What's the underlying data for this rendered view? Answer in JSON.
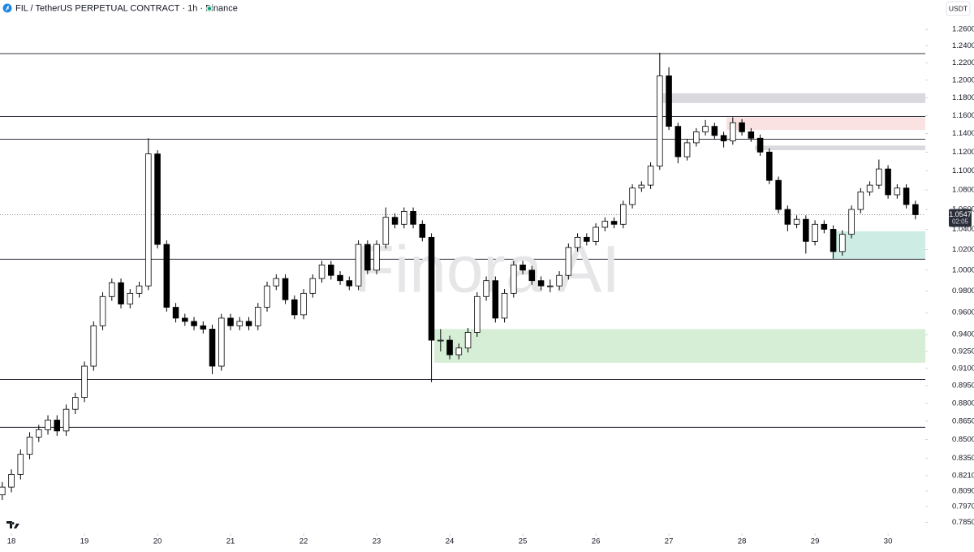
{
  "chart_data": {
    "type": "candlestick",
    "title": "FIL / TetherUS PERPETUAL CONTRACT · 1h · Binance",
    "currency": "USDT",
    "watermark": "Finora AI",
    "log_scale": true,
    "up_color": "#ffffff",
    "down_color": "#000000",
    "x": [
      17.875,
      18,
      18.125,
      18.25,
      18.375,
      18.5,
      18.625,
      18.75,
      18.875,
      19,
      19.125,
      19.25,
      19.375,
      19.5,
      19.625,
      19.75,
      19.875,
      20,
      20.125,
      20.25,
      20.375,
      20.5,
      20.625,
      20.75,
      20.875,
      21,
      21.125,
      21.25,
      21.375,
      21.5,
      21.625,
      21.75,
      21.875,
      22,
      22.125,
      22.25,
      22.375,
      22.5,
      22.625,
      22.75,
      22.875,
      23,
      23.125,
      23.25,
      23.375,
      23.5,
      23.625,
      23.75,
      23.875,
      24,
      24.125,
      24.25,
      24.375,
      24.5,
      24.625,
      24.75,
      24.875,
      25,
      25.125,
      25.25,
      25.375,
      25.5,
      25.625,
      25.75,
      25.875,
      26,
      26.125,
      26.25,
      26.375,
      26.5,
      26.625,
      26.75,
      26.875,
      27,
      27.125,
      27.25,
      27.375,
      27.5,
      27.625,
      27.75,
      27.875,
      28,
      28.125,
      28.25,
      28.375,
      28.5,
      28.625,
      28.75,
      28.875,
      29,
      29.125,
      29.25,
      29.375,
      29.5,
      29.625,
      29.75,
      29.875,
      30,
      30.125,
      30.25,
      30.375
    ],
    "open": [
      0.806,
      0.812,
      0.822,
      0.838,
      0.852,
      0.858,
      0.866,
      0.857,
      0.875,
      0.885,
      0.912,
      0.948,
      0.975,
      0.988,
      0.968,
      0.978,
      0.985,
      1.118,
      1.025,
      0.965,
      0.955,
      0.952,
      0.948,
      0.945,
      0.912,
      0.955,
      0.948,
      0.952,
      0.948,
      0.965,
      0.985,
      0.992,
      0.972,
      0.958,
      0.978,
      0.992,
      1.005,
      0.995,
      0.99,
      0.985,
      1.025,
      1.0,
      1.025,
      1.052,
      1.045,
      1.058,
      1.045,
      1.032,
      0.935,
      0.935,
      0.922,
      0.928,
      0.942,
      0.975,
      0.99,
      0.955,
      0.978,
      1.005,
      1.0,
      0.99,
      0.985,
      0.985,
      0.995,
      1.022,
      1.032,
      1.028,
      1.042,
      1.048,
      1.045,
      1.065,
      1.082,
      1.085,
      1.105,
      1.205,
      1.148,
      1.115,
      1.13,
      1.142,
      1.148,
      1.138,
      1.132,
      1.152,
      1.142,
      1.135,
      1.12,
      1.09,
      1.06,
      1.045,
      1.05,
      1.028,
      1.045,
      1.04,
      1.018,
      1.035,
      1.06,
      1.078,
      1.085,
      1.102,
      1.075,
      1.082,
      1.065
    ],
    "high": [
      0.816,
      0.826,
      0.842,
      0.856,
      0.862,
      0.87,
      0.87,
      0.879,
      0.889,
      0.916,
      0.952,
      0.979,
      0.992,
      0.992,
      0.982,
      0.989,
      1.135,
      1.122,
      1.029,
      0.969,
      0.959,
      0.956,
      0.952,
      0.949,
      0.959,
      0.959,
      0.956,
      0.956,
      0.969,
      0.989,
      0.996,
      0.996,
      0.976,
      0.982,
      0.996,
      1.009,
      1.009,
      0.999,
      0.994,
      1.029,
      1.029,
      1.029,
      1.062,
      1.056,
      1.062,
      1.062,
      1.049,
      1.036,
      0.945,
      0.939,
      0.932,
      0.946,
      0.979,
      0.994,
      0.994,
      0.982,
      1.009,
      1.009,
      1.004,
      0.994,
      0.991,
      0.999,
      1.026,
      1.036,
      1.036,
      1.046,
      1.052,
      1.052,
      1.069,
      1.086,
      1.089,
      1.109,
      1.232,
      1.215,
      1.152,
      1.134,
      1.146,
      1.155,
      1.152,
      1.142,
      1.158,
      1.156,
      1.146,
      1.139,
      1.124,
      1.094,
      1.064,
      1.054,
      1.054,
      1.049,
      1.049,
      1.044,
      1.039,
      1.064,
      1.082,
      1.089,
      1.112,
      1.106,
      1.086,
      1.086,
      1.069
    ],
    "low": [
      0.802,
      0.808,
      0.818,
      0.834,
      0.848,
      0.854,
      0.853,
      0.853,
      0.871,
      0.881,
      0.908,
      0.944,
      0.971,
      0.964,
      0.964,
      0.974,
      0.981,
      1.021,
      0.961,
      0.951,
      0.948,
      0.944,
      0.941,
      0.905,
      0.908,
      0.944,
      0.944,
      0.944,
      0.944,
      0.961,
      0.981,
      0.968,
      0.954,
      0.954,
      0.974,
      0.988,
      0.991,
      0.986,
      0.981,
      0.981,
      0.996,
      0.996,
      1.021,
      1.041,
      1.041,
      1.041,
      1.028,
      0.898,
      0.925,
      0.918,
      0.918,
      0.924,
      0.938,
      0.971,
      0.951,
      0.951,
      0.974,
      0.996,
      0.986,
      0.981,
      0.979,
      0.981,
      0.991,
      1.018,
      1.024,
      1.024,
      1.038,
      1.041,
      1.041,
      1.061,
      1.078,
      1.081,
      1.101,
      1.144,
      1.108,
      1.111,
      1.126,
      1.138,
      1.134,
      1.125,
      1.128,
      1.138,
      1.131,
      1.116,
      1.086,
      1.056,
      1.038,
      1.041,
      1.016,
      1.024,
      1.036,
      1.011,
      1.014,
      1.031,
      1.056,
      1.074,
      1.081,
      1.071,
      1.071,
      1.061,
      1.05
    ],
    "close": [
      0.812,
      0.822,
      0.838,
      0.852,
      0.858,
      0.866,
      0.857,
      0.875,
      0.885,
      0.912,
      0.948,
      0.975,
      0.988,
      0.968,
      0.978,
      0.985,
      1.118,
      1.025,
      0.965,
      0.955,
      0.952,
      0.948,
      0.945,
      0.912,
      0.955,
      0.948,
      0.952,
      0.948,
      0.965,
      0.985,
      0.992,
      0.972,
      0.958,
      0.978,
      0.992,
      1.005,
      0.995,
      0.99,
      0.985,
      1.025,
      1.0,
      1.025,
      1.052,
      1.045,
      1.058,
      1.045,
      1.032,
      0.935,
      0.935,
      0.922,
      0.928,
      0.942,
      0.975,
      0.99,
      0.955,
      0.978,
      1.005,
      1.0,
      0.99,
      0.985,
      0.985,
      0.995,
      1.022,
      1.032,
      1.028,
      1.042,
      1.048,
      1.045,
      1.065,
      1.082,
      1.085,
      1.105,
      1.205,
      1.148,
      1.115,
      1.13,
      1.142,
      1.148,
      1.138,
      1.132,
      1.152,
      1.142,
      1.135,
      1.12,
      1.09,
      1.06,
      1.045,
      1.05,
      1.028,
      1.045,
      1.04,
      1.018,
      1.035,
      1.06,
      1.078,
      1.085,
      1.102,
      1.075,
      1.082,
      1.065,
      1.0547
    ],
    "xlim": [
      17.844,
      30.51
    ],
    "xticks": [
      18,
      19,
      20,
      21,
      22,
      23,
      24,
      25,
      26,
      27,
      28,
      29,
      30
    ],
    "ylim": [
      0.778,
      1.296
    ],
    "yticks": [
      {
        "value": 1.26,
        "label": "1.2600"
      },
      {
        "value": 1.24,
        "label": "1.2400"
      },
      {
        "value": 1.22,
        "label": "1.2200"
      },
      {
        "value": 1.2,
        "label": "1.2000"
      },
      {
        "value": 1.18,
        "label": "1.1800"
      },
      {
        "value": 1.16,
        "label": "1.1600"
      },
      {
        "value": 1.14,
        "label": "1.1400"
      },
      {
        "value": 1.12,
        "label": "1.1200"
      },
      {
        "value": 1.1,
        "label": "1.1000"
      },
      {
        "value": 1.08,
        "label": "1.0800"
      },
      {
        "value": 1.06,
        "label": "1.0600"
      },
      {
        "value": 1.04,
        "label": "1.0400"
      },
      {
        "value": 1.02,
        "label": "1.0200"
      },
      {
        "value": 1,
        "label": "1.0000"
      },
      {
        "value": 0.98,
        "label": "0.9800"
      },
      {
        "value": 0.96,
        "label": "0.9600"
      },
      {
        "value": 0.94,
        "label": "0.9400"
      },
      {
        "value": 0.925,
        "label": "0.9250"
      },
      {
        "value": 0.91,
        "label": "0.9100"
      },
      {
        "value": 0.895,
        "label": "0.8950"
      },
      {
        "value": 0.88,
        "label": "0.8800"
      },
      {
        "value": 0.865,
        "label": "0.8650"
      },
      {
        "value": 0.85,
        "label": "0.8500"
      },
      {
        "value": 0.835,
        "label": "0.8350"
      },
      {
        "value": 0.821,
        "label": "0.8210"
      },
      {
        "value": 0.809,
        "label": "0.8090"
      },
      {
        "value": 0.797,
        "label": "0.7970"
      },
      {
        "value": 0.785,
        "label": "0.7850"
      }
    ],
    "levels": [
      1.231,
      1.159,
      1.134,
      1.0106,
      0.9004,
      0.86
    ],
    "zones": [
      {
        "top": 1.185,
        "bottom": 1.174,
        "x_start": 26.844,
        "color": "#d9d9de"
      },
      {
        "top": 1.158,
        "bottom": 1.144,
        "x_start": 27.789,
        "color": "#fbe2e2"
      },
      {
        "top": 1.127,
        "bottom": 1.122,
        "x_start": 28.178,
        "color": "#d9d9de"
      },
      {
        "top": 1.038,
        "bottom": 1.011,
        "x_start": 29.233,
        "color": "#cdece4"
      },
      {
        "top": 0.945,
        "bottom": 0.915,
        "x_start": 23.789,
        "color": "#d5eed5"
      }
    ],
    "last_price": {
      "value": 1.0547,
      "label": "1.0547"
    },
    "countdown": "02:05"
  }
}
